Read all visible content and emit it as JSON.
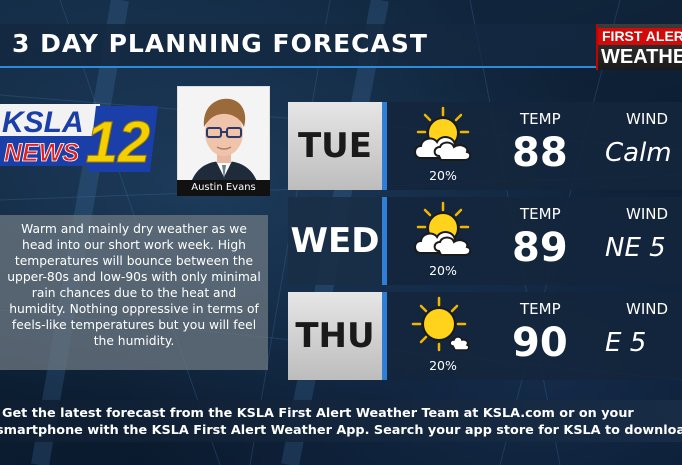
{
  "header": {
    "title": "3 DAY PLANNING FORECAST",
    "brand_top": "FIRST ALERT",
    "brand_bottom": "WEATHER"
  },
  "station_logo": {
    "text_top": "KSLA",
    "text_bottom": "NEWS",
    "channel": "12"
  },
  "anchor": {
    "name": "Austin Evans"
  },
  "summary": "Warm and mainly dry weather as we head into our short work week. High temperatures will bounce between the upper-80s and low-90s with only minimal rain chances due to the heat and humidity. Nothing oppressive in terms of feels-like temperatures but you will feel the humidity.",
  "labels": {
    "temp": "TEMP",
    "wind": "WIND"
  },
  "forecast": [
    {
      "day": "TUE",
      "icon": "partly-cloudy-icon",
      "rain_chance": "20%",
      "temp": "88",
      "wind": "Calm"
    },
    {
      "day": "WED",
      "icon": "partly-cloudy-icon",
      "rain_chance": "20%",
      "temp": "89",
      "wind": "NE 5"
    },
    {
      "day": "THU",
      "icon": "mostly-sunny-icon",
      "rain_chance": "20%",
      "temp": "90",
      "wind": "E 5"
    }
  ],
  "ticker": {
    "line1": "Get the latest forecast from the KSLA First Alert Weather Team at KSLA.com or on your",
    "line2": "smartphone with the KSLA First Alert Weather App. Search your app store for KSLA to download."
  },
  "colors": {
    "accent_blue": "#2f7fd6",
    "brand_red": "#d10a0a",
    "logo_blue": "#1a3fa8",
    "logo_yellow": "#f5d000"
  }
}
